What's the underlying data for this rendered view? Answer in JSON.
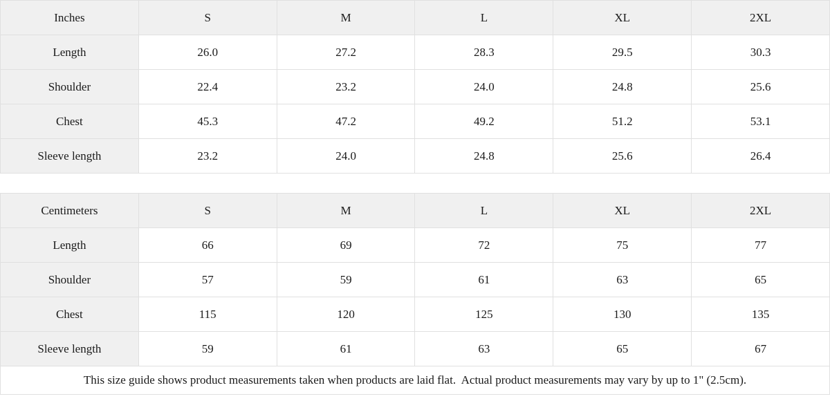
{
  "tables": {
    "inches": {
      "unit_label": "Inches",
      "sizes": [
        "S",
        "M",
        "L",
        "XL",
        "2XL"
      ],
      "rows": [
        {
          "label": "Length",
          "values": [
            "26.0",
            "27.2",
            "28.3",
            "29.5",
            "30.3"
          ]
        },
        {
          "label": "Shoulder",
          "values": [
            "22.4",
            "23.2",
            "24.0",
            "24.8",
            "25.6"
          ]
        },
        {
          "label": "Chest",
          "values": [
            "45.3",
            "47.2",
            "49.2",
            "51.2",
            "53.1"
          ]
        },
        {
          "label": "Sleeve length",
          "values": [
            "23.2",
            "24.0",
            "24.8",
            "25.6",
            "26.4"
          ]
        }
      ]
    },
    "centimeters": {
      "unit_label": "Centimeters",
      "sizes": [
        "S",
        "M",
        "L",
        "XL",
        "2XL"
      ],
      "rows": [
        {
          "label": "Length",
          "values": [
            "66",
            "69",
            "72",
            "75",
            "77"
          ]
        },
        {
          "label": "Shoulder",
          "values": [
            "57",
            "59",
            "61",
            "63",
            "65"
          ]
        },
        {
          "label": "Chest",
          "values": [
            "115",
            "120",
            "125",
            "130",
            "135"
          ]
        },
        {
          "label": "Sleeve length",
          "values": [
            "59",
            "61",
            "63",
            "65",
            "67"
          ]
        }
      ]
    }
  },
  "footer": {
    "note": "This size guide shows product measurements taken when products are laid flat.  Actual product measurements may vary by up to 1\" (2.5cm)."
  },
  "colors": {
    "header_bg": "#f0f0f0",
    "border": "#e0e0e0",
    "text": "#1a1a1a"
  }
}
